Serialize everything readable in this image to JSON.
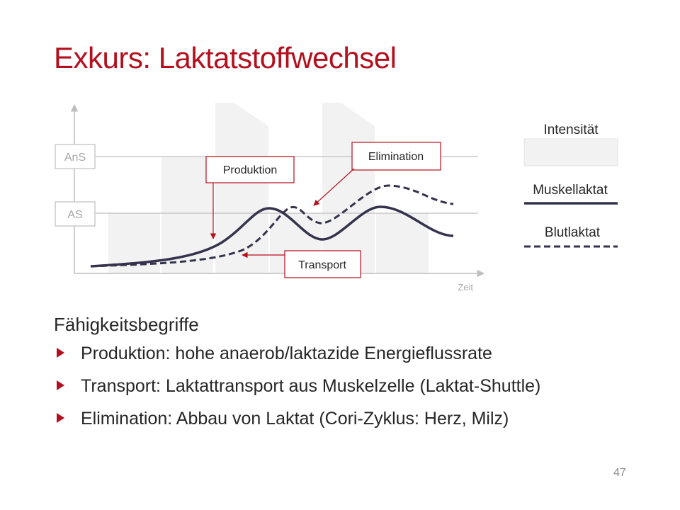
{
  "slide": {
    "title": "Exkurs: Laktatstoffwechsel",
    "page_number": "47"
  },
  "diagram": {
    "threshold_labels": {
      "ans": "AnS",
      "as": "AS"
    },
    "x_axis_label": "Zeit",
    "callouts": {
      "production": "Produktion",
      "elimination": "Elimination",
      "transport": "Transport"
    },
    "legend": {
      "intensity": "Intensität",
      "muscle_lactate": "Muskellaktat",
      "blood_lactate": "Blutlaktat"
    },
    "colors": {
      "accent": "#b30f1d",
      "curve": "#33334d",
      "intensity_fill": "#f2f2f2",
      "grid": "#bfbfbf"
    }
  },
  "content": {
    "heading": "Fähigkeitsbegriffe",
    "bullets": [
      "Produktion: hohe anaerob/laktazide Energieflussrate",
      "Transport: Laktattransport aus Muskelzelle (Laktat-Shuttle)",
      "Elimination: Abbau von Laktat (Cori-Zyklus: Herz, Milz)"
    ]
  }
}
